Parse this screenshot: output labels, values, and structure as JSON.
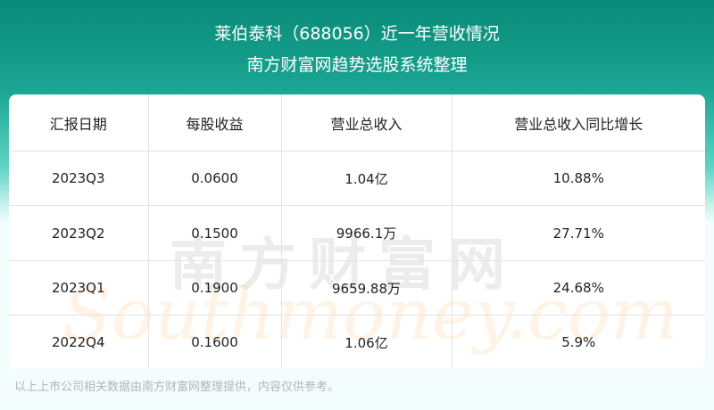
{
  "header": {
    "title": "莱伯泰科（688056）近一年营收情况",
    "subtitle": "南方财富网趋势选股系统整理"
  },
  "table": {
    "columns": [
      "汇报日期",
      "每股收益",
      "营业总收入",
      "营业总收入同比增长"
    ],
    "rows": [
      [
        "2023Q3",
        "0.0600",
        "1.04亿",
        "10.88%"
      ],
      [
        "2023Q2",
        "0.1500",
        "9966.1万",
        "27.71%"
      ],
      [
        "2023Q1",
        "0.1900",
        "9659.88万",
        "24.68%"
      ],
      [
        "2022Q4",
        "0.1600",
        "1.06亿",
        "5.9%"
      ]
    ]
  },
  "watermark": {
    "cn": "南方财富网",
    "en": "Southmoney.com"
  },
  "footer": "以上上市公司相关数据由南方财富网整理提供，内容仅供参考。",
  "colors": {
    "header_bg": "#0a8a78",
    "page_bg": "#f3fdfd"
  }
}
